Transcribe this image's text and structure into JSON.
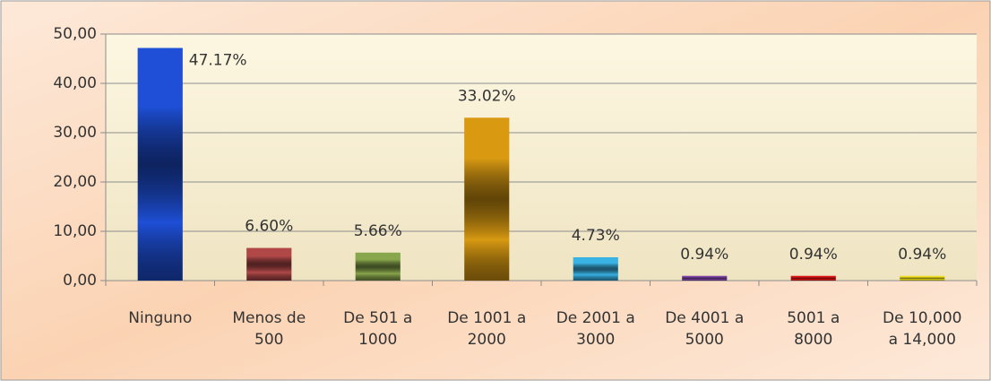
{
  "chart_data": {
    "type": "bar",
    "categories": [
      "Ninguno",
      "Menos de\n500",
      "De 501 a\n1000",
      "De 1001 a\n2000",
      "De 2001 a\n3000",
      "De 4001 a\n5000",
      "5001 a\n8000",
      "De 10,000\na 14,000"
    ],
    "values": [
      47.17,
      6.6,
      5.66,
      33.02,
      4.73,
      0.94,
      0.94,
      0.94
    ],
    "value_labels": [
      "47.17%",
      "6.60%",
      "5.66%",
      "33.02%",
      "4.73%",
      "0.94%",
      "0.94%",
      "0.94%"
    ],
    "colors": [
      "#1e4fd6",
      "#b04848",
      "#88a64c",
      "#d99a12",
      "#39b2e4",
      "#7b42a3",
      "#e01414",
      "#eee020"
    ],
    "ylim": [
      0,
      50
    ],
    "yticks": [
      {
        "value": 0,
        "label": "0,00"
      },
      {
        "value": 10,
        "label": "10,00"
      },
      {
        "value": 20,
        "label": "20,00"
      },
      {
        "value": 30,
        "label": "30,00"
      },
      {
        "value": 40,
        "label": "40,00"
      },
      {
        "value": 50,
        "label": "50,00"
      }
    ],
    "grid": true
  }
}
